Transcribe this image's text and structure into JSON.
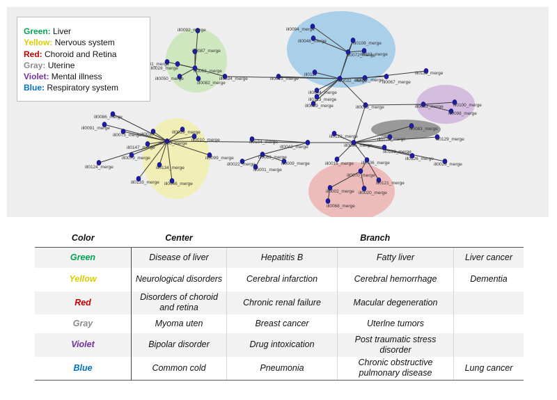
{
  "legend": {
    "green": {
      "key": "Green:",
      "text": "Liver"
    },
    "yellow": {
      "key": "Yellow:",
      "text": "Nervous system"
    },
    "red": {
      "key": "Red:",
      "text": "Choroid and Retina"
    },
    "gray": {
      "key": "Gray:",
      "text": "Uterine"
    },
    "violet": {
      "key": "Violet:",
      "text": "Mental illness"
    },
    "blue": {
      "key": "Blue:",
      "text": "Respiratory system"
    }
  },
  "group_colors": {
    "green": "#bfe3a6",
    "yellow": "#f2f096",
    "red": "#ee9f9f",
    "gray": "#8f8f8f",
    "violet": "#c7a3d9",
    "blue": "#86bfe6"
  },
  "node_color": "#1c1ca8",
  "graph_labels": [
    "ill0092_merge",
    "ill0087_merge",
    "ill0081_merge",
    "ill0063_merge",
    "ill0028_merge",
    "ill0050_merge",
    "ill0082_merge",
    "ill0034_merge",
    "ill0015_merge",
    "ill0127",
    "ill0032_merge",
    "ill0044_merge",
    "ill0113_merge",
    "ill0039_merge",
    "ill0094_merge",
    "ill0048_merge",
    "ill0108_merge",
    "ill0072_merge",
    "ill0111_merge",
    "ill0067_merge",
    "ill0057_merge",
    "ill0110_merge",
    "ill0033_merge",
    "ill0003_merge",
    "ill0100_merge",
    "ill0098_merge",
    "ill0086_merge",
    "ill0091_merge",
    "ill0073_merge",
    "ill0030",
    "ill0029_merge",
    "ill0010_merge",
    "ill0147_merge",
    "ill0060_merge",
    "ill0099_merge",
    "ill0079_merge",
    "ill0124_merge",
    "ill0134_merge",
    "ill0133_merge",
    "ill0046_merge",
    "ill0104_merge",
    "ill0069_merge",
    "ill0022_merge",
    "ill0001_merge",
    "ill0009_merge",
    "ill0042_merge",
    "ill0122_merge",
    "ill0096_merge",
    "ill0083_merge",
    "ill0128_merge",
    "ill0129_merge",
    "ill0123_merge",
    "ill0126_merge",
    "ill0026_merge",
    "ill0016_merge",
    "ill0106_merge",
    "ill0070_merge",
    "ill0121_merge",
    "ill0002_merge",
    "ill0020_merge",
    "ill0068_merge"
  ],
  "table": {
    "headers": {
      "color": "Color",
      "center": "Center",
      "branch": "Branch"
    },
    "rows": [
      {
        "color": "Green",
        "center": "Disease of liver",
        "b1": "Hepatitis B",
        "b2": "Fatty liver",
        "b3": "Liver cancer"
      },
      {
        "color": "Yellow",
        "center": "Neurological disorders",
        "b1": "Cerebral infarction",
        "b2": "Cerebral hemorrhage",
        "b3": "Dementia"
      },
      {
        "color": "Red",
        "center": "Disorders of choroid and retina",
        "b1": "Chronic renal failure",
        "b2": "Macular degeneration",
        "b3": ""
      },
      {
        "color": "Gray",
        "center": "Myoma uten",
        "b1": "Breast cancer",
        "b2": "Uterlne tumors",
        "b3": ""
      },
      {
        "color": "Violet",
        "center": "Bipolar disorder",
        "b1": "Drug intoxication",
        "b2": "Post traumatic stress disorder",
        "b3": ""
      },
      {
        "color": "Blue",
        "center": "Common cold",
        "b1": "Pneumonia",
        "b2": "Chronic obstructive pulmonary disease",
        "b3": "Lung cancer"
      }
    ]
  }
}
